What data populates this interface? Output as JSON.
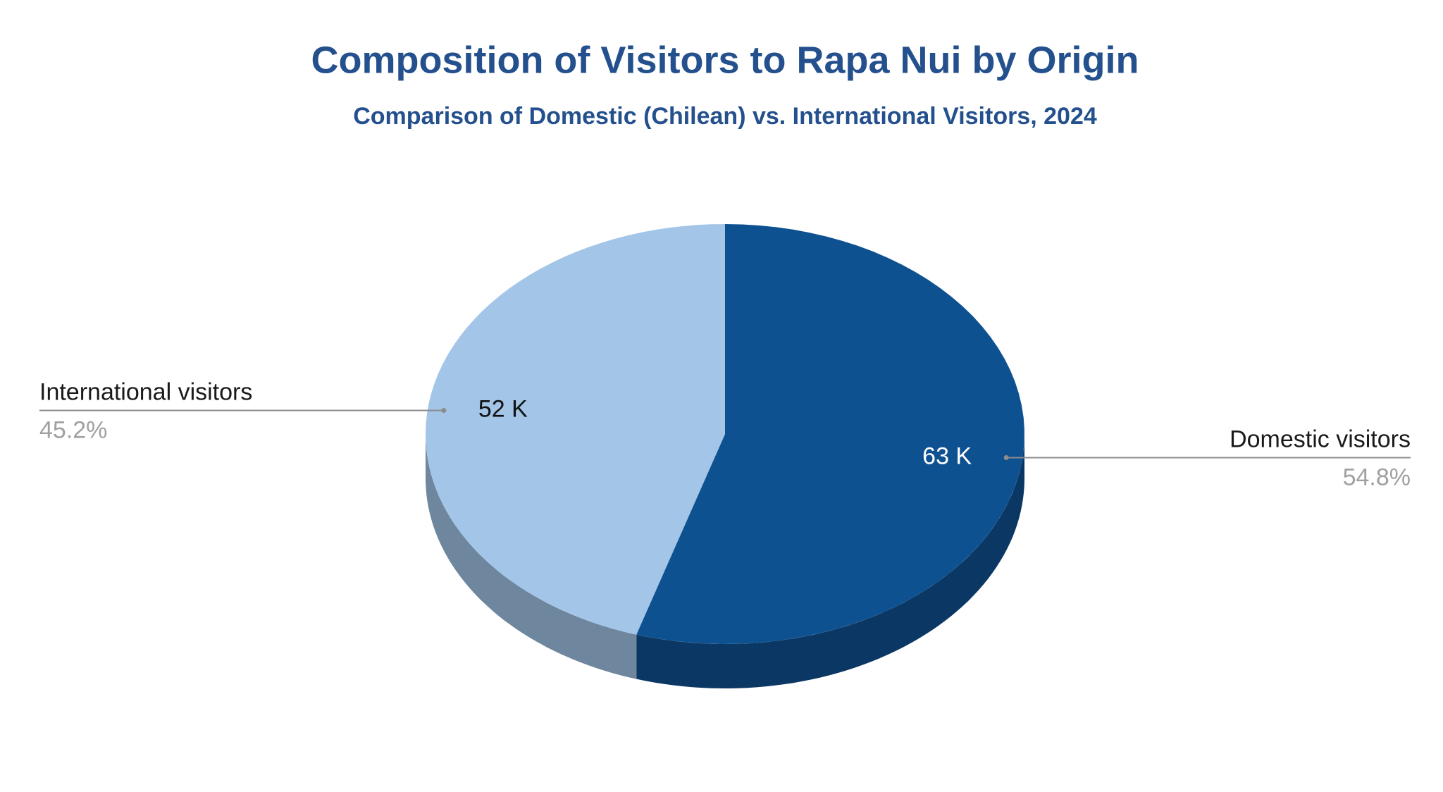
{
  "chart_data": {
    "type": "pie",
    "title": "Composition of Visitors to Rapa Nui by Origin",
    "subtitle": "Comparison of Domestic (Chilean) vs. International Visitors, 2024",
    "categories": [
      "Domestic visitors",
      "International visitors"
    ],
    "values": [
      63000,
      52000
    ],
    "value_labels": [
      "63 K",
      "52 K"
    ],
    "percent_labels": [
      "54.8%",
      "45.2%"
    ],
    "colors": [
      "#0e5191",
      "#a2c5e8"
    ]
  }
}
